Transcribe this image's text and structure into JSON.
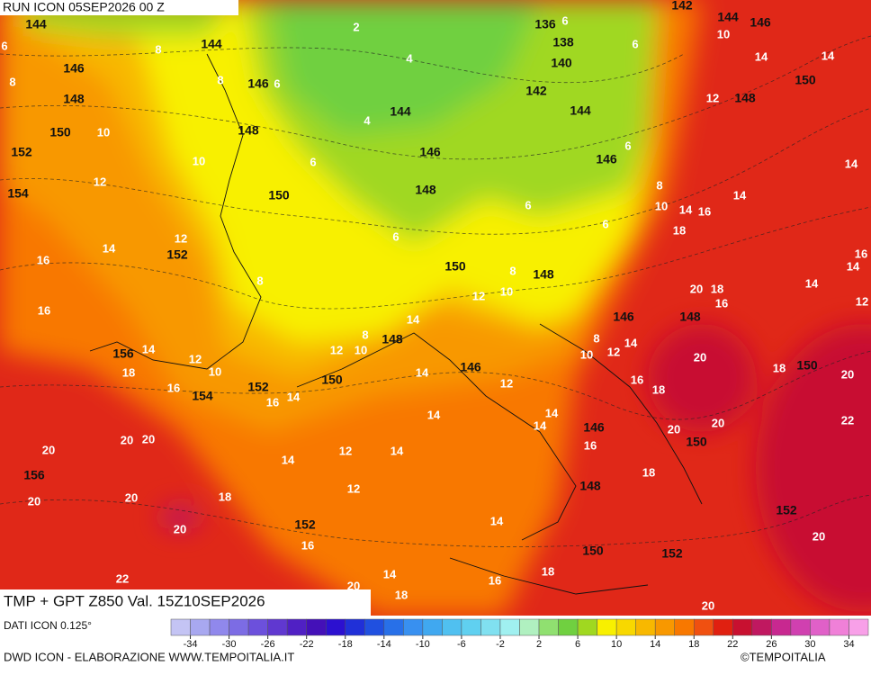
{
  "header": {
    "run": "RUN ICON 05SEP2026 00 Z"
  },
  "footer": {
    "title": "TMP + GPT Z850 Val. 15Z10SEP2026",
    "source": "DATI ICON 0.125°",
    "credit": "DWD ICON - ELABORAZIONE WWW.TEMPOITALIA.IT",
    "brand": "©TEMPOITALIA"
  },
  "legend": {
    "range": [
      -36,
      36
    ],
    "ticks": [
      -34,
      -30,
      -26,
      -22,
      -18,
      -14,
      -10,
      -6,
      -2,
      2,
      6,
      10,
      14,
      18,
      22,
      26,
      30,
      34
    ],
    "colors": [
      "#c4c4f4",
      "#a8a8f0",
      "#9088ec",
      "#7c6ce4",
      "#6c50dc",
      "#6038d0",
      "#5020c4",
      "#4410b8",
      "#2c10d0",
      "#2030d8",
      "#2050e0",
      "#2870e8",
      "#3890f0",
      "#40a8f0",
      "#50c0f0",
      "#60d0f0",
      "#80e0f0",
      "#a0f0f0",
      "#b0f0c0",
      "#90e070",
      "#70d040",
      "#a0d820",
      "#f8f000",
      "#f8d800",
      "#f8b800",
      "#f89800",
      "#f87800",
      "#f05010",
      "#e02010",
      "#c81030",
      "#c01860",
      "#c82890",
      "#d040b0",
      "#e060c8",
      "#f080d8",
      "#f8a0e8"
    ]
  },
  "map": {
    "gpt_labels": [
      144,
      144,
      146,
      146,
      148,
      148,
      150,
      152,
      154,
      150,
      152,
      156,
      154,
      152,
      150,
      148,
      146,
      150,
      148,
      146,
      148,
      146,
      150,
      148,
      150,
      152,
      152,
      156,
      152,
      150,
      150,
      148,
      146,
      144,
      142,
      136,
      138,
      140,
      142,
      144,
      146,
      148,
      146,
      144
    ],
    "temp_labels": [
      6,
      8,
      8,
      8,
      6,
      4,
      2,
      4,
      6,
      6,
      10,
      14,
      14,
      12,
      10,
      10,
      12,
      6,
      6,
      8,
      6,
      6,
      10,
      14,
      16,
      14,
      18,
      14,
      12,
      14,
      16,
      16,
      8,
      6,
      8,
      10,
      12,
      14,
      8,
      10,
      12,
      14,
      18,
      12,
      10,
      16,
      16,
      14,
      14,
      12,
      8,
      10,
      12,
      14,
      16,
      18,
      14,
      14,
      14,
      16,
      18,
      12,
      14,
      14,
      12,
      20,
      20,
      20,
      20,
      20,
      20,
      18,
      16,
      14,
      14,
      16,
      18,
      18,
      22,
      20,
      20,
      18,
      16,
      20,
      18,
      20,
      16,
      14,
      14,
      12,
      22,
      20,
      20,
      20,
      20
    ]
  }
}
